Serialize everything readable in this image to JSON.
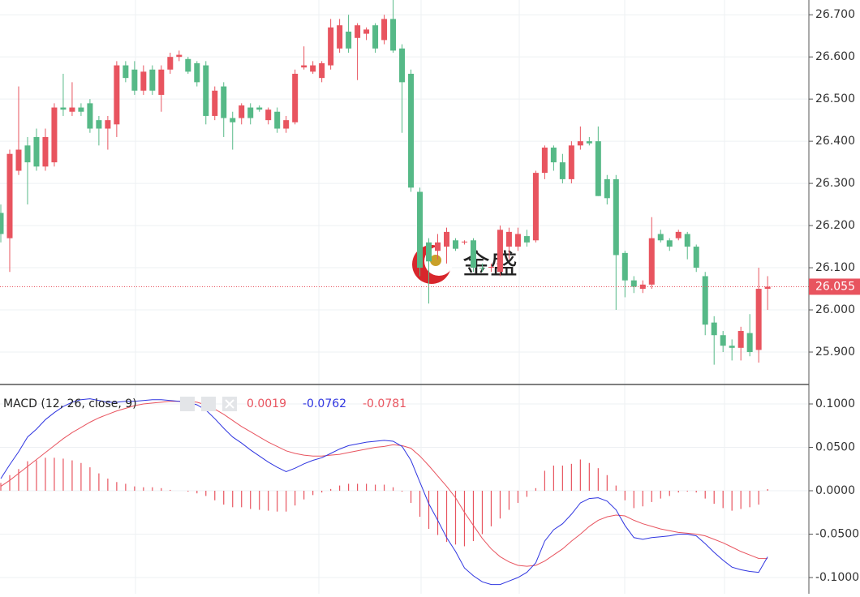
{
  "chart_data": [
    {
      "type": "candlestick",
      "up_color": "#e8545f",
      "down_color": "#56b987",
      "open": [
        26.23,
        26.17,
        26.33,
        26.39,
        26.41,
        26.34,
        26.35,
        26.48,
        26.47,
        26.48,
        26.49,
        26.45,
        26.43,
        26.44,
        26.58,
        26.57,
        26.52,
        26.57,
        26.51,
        26.57,
        26.6,
        26.595,
        26.585,
        26.58,
        26.46,
        26.53,
        26.455,
        26.455,
        26.48,
        26.48,
        26.45,
        26.47,
        26.43,
        26.445,
        26.575,
        26.565,
        26.55,
        26.58,
        26.62,
        26.66,
        26.645,
        26.655,
        26.675,
        26.64,
        26.69,
        26.62,
        26.56,
        26.28,
        26.16,
        26.14,
        26.15,
        26.165,
        26.16,
        26.165,
        26.1,
        26.1,
        26.09,
        26.15,
        26.15,
        26.175,
        26.165,
        26.325,
        26.385,
        26.35,
        26.31,
        26.39,
        26.4,
        26.4,
        26.31,
        26.31,
        26.135,
        26.07,
        26.05,
        26.06,
        26.18,
        26.165,
        26.17,
        26.18,
        26.15,
        26.08,
        25.97,
        25.94,
        25.915,
        25.91,
        25.945,
        25.905,
        26.05
      ],
      "high": [
        26.25,
        26.38,
        26.53,
        26.41,
        26.43,
        26.43,
        26.49,
        26.56,
        26.54,
        26.49,
        26.5,
        26.46,
        26.46,
        26.59,
        26.59,
        26.59,
        26.58,
        26.58,
        26.58,
        26.61,
        26.615,
        26.6,
        26.59,
        26.59,
        26.53,
        26.54,
        26.47,
        26.49,
        26.49,
        26.485,
        26.48,
        26.48,
        26.46,
        26.57,
        26.625,
        26.59,
        26.59,
        26.69,
        26.69,
        26.7,
        26.68,
        26.67,
        26.68,
        26.7,
        26.735,
        26.63,
        26.57,
        26.29,
        26.17,
        26.18,
        26.195,
        26.17,
        26.165,
        26.17,
        26.11,
        26.11,
        26.2,
        26.195,
        26.195,
        26.19,
        26.33,
        26.39,
        26.39,
        26.37,
        26.4,
        26.435,
        26.41,
        26.435,
        26.32,
        26.32,
        26.14,
        26.08,
        26.07,
        26.22,
        26.19,
        26.17,
        26.19,
        26.185,
        26.155,
        26.09,
        25.985,
        25.95,
        25.93,
        25.96,
        25.99,
        26.1,
        26.08
      ],
      "low": [
        26.16,
        26.09,
        26.32,
        26.25,
        26.33,
        26.33,
        26.34,
        26.46,
        26.46,
        26.46,
        26.42,
        26.39,
        26.38,
        26.41,
        26.54,
        26.51,
        26.51,
        26.51,
        26.47,
        26.56,
        26.59,
        26.56,
        26.53,
        26.44,
        26.45,
        26.41,
        26.38,
        26.44,
        26.44,
        26.47,
        26.44,
        26.42,
        26.42,
        26.44,
        26.57,
        26.56,
        26.54,
        26.57,
        26.61,
        26.61,
        26.545,
        26.64,
        26.61,
        26.63,
        26.61,
        26.42,
        26.28,
        26.08,
        26.015,
        26.12,
        26.11,
        26.14,
        26.155,
        26.09,
        26.09,
        26.09,
        26.08,
        26.12,
        26.14,
        26.15,
        26.16,
        26.31,
        26.33,
        26.3,
        26.3,
        26.38,
        26.39,
        26.27,
        26.25,
        26.0,
        26.03,
        26.04,
        26.04,
        26.05,
        26.16,
        26.14,
        26.165,
        26.12,
        26.09,
        25.94,
        25.87,
        25.9,
        25.88,
        25.88,
        25.89,
        25.875,
        26.0
      ],
      "close": [
        26.18,
        26.37,
        26.38,
        26.35,
        26.34,
        26.41,
        26.48,
        26.475,
        26.48,
        26.47,
        26.43,
        26.43,
        26.45,
        26.58,
        26.55,
        26.52,
        26.565,
        26.52,
        26.57,
        26.6,
        26.605,
        26.565,
        26.54,
        26.46,
        26.52,
        26.455,
        26.445,
        26.485,
        26.455,
        26.475,
        26.475,
        26.43,
        26.45,
        26.56,
        26.58,
        26.58,
        26.585,
        26.67,
        26.675,
        26.62,
        26.675,
        26.665,
        26.62,
        26.69,
        26.615,
        26.54,
        26.29,
        26.1,
        26.115,
        26.16,
        26.185,
        26.145,
        26.162,
        26.1,
        26.098,
        26.102,
        26.19,
        26.185,
        26.18,
        26.16,
        26.325,
        26.385,
        26.35,
        26.31,
        26.39,
        26.4,
        26.395,
        26.27,
        26.265,
        26.13,
        26.07,
        26.055,
        26.06,
        26.17,
        26.165,
        26.15,
        26.185,
        26.15,
        26.1,
        25.965,
        25.94,
        25.915,
        25.91,
        25.95,
        25.9,
        26.05,
        26.055
      ],
      "ylim": [
        25.825,
        26.735
      ],
      "yticks": [
        {
          "value": 25.9,
          "label": "25.900"
        },
        {
          "value": 26.0,
          "label": "26.000"
        },
        {
          "value": 26.1,
          "label": "26.100"
        },
        {
          "value": 26.2,
          "label": "26.200"
        },
        {
          "value": 26.3,
          "label": "26.300"
        },
        {
          "value": 26.4,
          "label": "26.400"
        },
        {
          "value": 26.5,
          "label": "26.500"
        },
        {
          "value": 26.6,
          "label": "26.600"
        },
        {
          "value": 26.7,
          "label": "26.700"
        }
      ],
      "grid": true,
      "last_price": 26.055,
      "last_price_color": "#e8545f",
      "watermark": "金盛"
    },
    {
      "type": "macd",
      "title": "MACD (12, 26, close, 9)",
      "histogram": {
        "color": "#e8545f",
        "values": [
          0.009,
          0.018,
          0.025,
          0.034,
          0.035,
          0.038,
          0.038,
          0.037,
          0.035,
          0.032,
          0.027,
          0.02,
          0.014,
          0.01,
          0.008,
          0.005,
          0.004,
          0.004,
          0.003,
          0.001,
          0,
          -0.001,
          -0.003,
          -0.006,
          -0.011,
          -0.016,
          -0.019,
          -0.019,
          -0.021,
          -0.022,
          -0.023,
          -0.024,
          -0.024,
          -0.017,
          -0.01,
          -0.005,
          -0.002,
          0.002,
          0.006,
          0.008,
          0.008,
          0.008,
          0.007,
          0.007,
          0.004,
          -0.001,
          -0.014,
          -0.03,
          -0.044,
          -0.051,
          -0.059,
          -0.062,
          -0.064,
          -0.058,
          -0.05,
          -0.041,
          -0.032,
          -0.022,
          -0.014,
          -0.007,
          0.003,
          0.023,
          0.029,
          0.029,
          0.031,
          0.036,
          0.032,
          0.026,
          0.018,
          0.006,
          -0.011,
          -0.02,
          -0.018,
          -0.013,
          -0.009,
          -0.006,
          -0.002,
          -0.001,
          -0.002,
          -0.009,
          -0.015,
          -0.02,
          -0.023,
          -0.021,
          -0.019,
          -0.016,
          0.0019
        ]
      },
      "macd": {
        "color": "#2f35e0",
        "values": [
          0.014,
          0.03,
          0.045,
          0.062,
          0.071,
          0.082,
          0.09,
          0.097,
          0.102,
          0.105,
          0.106,
          0.104,
          0.102,
          0.102,
          0.103,
          0.103,
          0.104,
          0.105,
          0.105,
          0.104,
          0.103,
          0.102,
          0.099,
          0.093,
          0.083,
          0.072,
          0.062,
          0.055,
          0.047,
          0.04,
          0.033,
          0.027,
          0.022,
          0.026,
          0.031,
          0.035,
          0.038,
          0.043,
          0.048,
          0.052,
          0.054,
          0.056,
          0.057,
          0.058,
          0.057,
          0.051,
          0.035,
          0.01,
          -0.015,
          -0.034,
          -0.054,
          -0.07,
          -0.089,
          -0.098,
          -0.105,
          -0.108,
          -0.108,
          -0.104,
          -0.1,
          -0.094,
          -0.083,
          -0.058,
          -0.045,
          -0.038,
          -0.027,
          -0.014,
          -0.009,
          -0.008,
          -0.012,
          -0.022,
          -0.04,
          -0.054,
          -0.056,
          -0.054,
          -0.053,
          -0.052,
          -0.05,
          -0.05,
          -0.052,
          -0.061,
          -0.071,
          -0.08,
          -0.088,
          -0.091,
          -0.093,
          -0.094,
          -0.0762
        ]
      },
      "signal": {
        "color": "#e8545f",
        "values": [
          0.005,
          0.012,
          0.02,
          0.028,
          0.036,
          0.044,
          0.052,
          0.06,
          0.067,
          0.073,
          0.079,
          0.084,
          0.088,
          0.092,
          0.095,
          0.098,
          0.1,
          0.101,
          0.102,
          0.103,
          0.103,
          0.103,
          0.102,
          0.099,
          0.094,
          0.088,
          0.081,
          0.074,
          0.068,
          0.062,
          0.056,
          0.051,
          0.046,
          0.043,
          0.041,
          0.04,
          0.04,
          0.041,
          0.042,
          0.044,
          0.046,
          0.048,
          0.05,
          0.051,
          0.053,
          0.052,
          0.049,
          0.04,
          0.029,
          0.017,
          0.005,
          -0.008,
          -0.025,
          -0.04,
          -0.055,
          -0.067,
          -0.076,
          -0.082,
          -0.086,
          -0.087,
          -0.086,
          -0.081,
          -0.074,
          -0.067,
          -0.058,
          -0.05,
          -0.041,
          -0.034,
          -0.03,
          -0.028,
          -0.029,
          -0.034,
          -0.038,
          -0.041,
          -0.044,
          -0.046,
          -0.048,
          -0.049,
          -0.05,
          -0.052,
          -0.056,
          -0.06,
          -0.065,
          -0.07,
          -0.074,
          -0.078,
          -0.0781
        ]
      },
      "ylim": [
        -0.1187,
        0.1215
      ],
      "yticks": [
        {
          "value": -0.1,
          "label": "-0.1000"
        },
        {
          "value": -0.05,
          "label": "-0.0500"
        },
        {
          "value": 0,
          "label": "0.0000"
        },
        {
          "value": 0.05,
          "label": "0.0500"
        },
        {
          "value": 0.1,
          "label": "0.1000"
        }
      ],
      "grid": true
    }
  ]
}
